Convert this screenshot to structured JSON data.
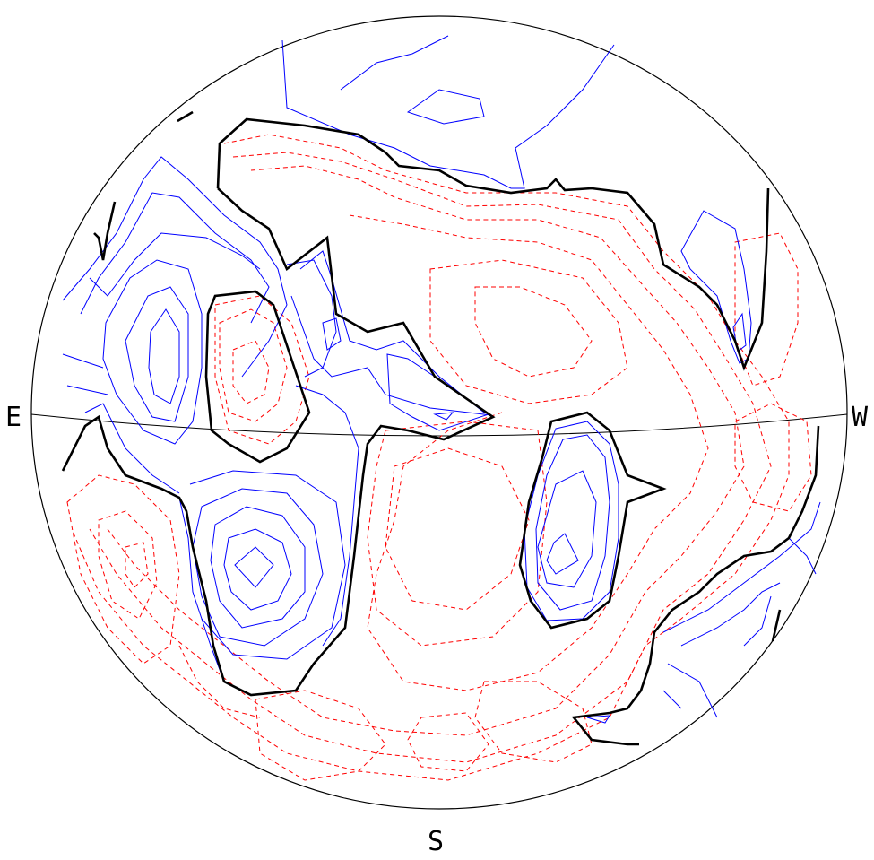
{
  "labels": {
    "east": "E",
    "west": "W",
    "south": "S"
  },
  "colors": {
    "outline": "#000000",
    "positive_contour": "#0000ff",
    "negative_contour": "#ff0000",
    "zero_contour": "#000000"
  }
}
